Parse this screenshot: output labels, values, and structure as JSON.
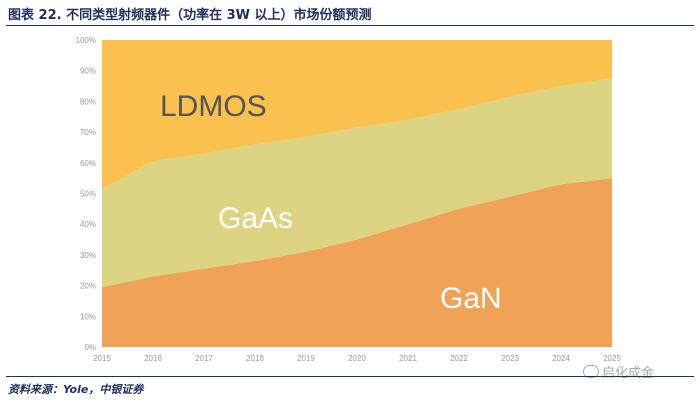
{
  "title": "图表 22. 不同类型射频器件（功率在 3W 以上）市场份额预测",
  "source": "资料来源：Yole，中银证券",
  "watermark": "启化成金",
  "colors": {
    "GaN": "#f0a257",
    "GaAs": "#dcd383",
    "LDMOS": "#fbc14e",
    "tick": "#9a9a9a",
    "area_label_light": "#ffffff",
    "area_label_dark": "#555555"
  },
  "chart_data": {
    "type": "area",
    "stacked": true,
    "x": [
      "2015",
      "2016",
      "2017",
      "2018",
      "2019",
      "2020",
      "2021",
      "2022",
      "2023",
      "2024",
      "2025"
    ],
    "y_ticks": [
      "0%",
      "10%",
      "20%",
      "30%",
      "40%",
      "50%",
      "60%",
      "70%",
      "80%",
      "90%",
      "100%"
    ],
    "ylim": [
      0,
      100
    ],
    "series": [
      {
        "name": "GaN",
        "values": [
          19.5,
          23,
          25.5,
          28,
          31,
          35,
          40,
          45,
          49,
          53,
          55
        ]
      },
      {
        "name": "GaAs",
        "values": [
          32,
          37.5,
          37.5,
          38,
          37.5,
          36.5,
          34,
          32.5,
          32.5,
          32,
          32.5
        ]
      },
      {
        "name": "LDMOS",
        "values": [
          48.5,
          39.5,
          37,
          34,
          31.5,
          28.5,
          26,
          22.5,
          18.5,
          15,
          12.5
        ]
      }
    ]
  }
}
